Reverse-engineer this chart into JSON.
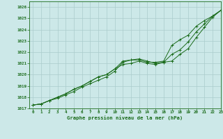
{
  "title": "Graphe pression niveau de la mer (hPa)",
  "background_color": "#cce8e8",
  "grid_color": "#aacccc",
  "line_color": "#1a6b1a",
  "xlim": [
    -0.5,
    23
  ],
  "ylim": [
    1017,
    1026.5
  ],
  "yticks": [
    1017,
    1018,
    1019,
    1020,
    1021,
    1022,
    1023,
    1024,
    1025,
    1026
  ],
  "xticks": [
    0,
    1,
    2,
    3,
    4,
    5,
    6,
    7,
    8,
    9,
    10,
    11,
    12,
    13,
    14,
    15,
    16,
    17,
    18,
    19,
    20,
    21,
    22,
    23
  ],
  "series": [
    [
      1017.3,
      1017.4,
      1017.7,
      1017.9,
      1018.2,
      1018.5,
      1018.9,
      1019.2,
      1019.5,
      1019.8,
      1020.3,
      1021.1,
      1021.3,
      1021.3,
      1021.1,
      1021.1,
      1021.2,
      1022.6,
      1023.1,
      1023.5,
      1024.3,
      1024.8,
      1025.2,
      1025.7
    ],
    [
      1017.3,
      1017.4,
      1017.7,
      1018.0,
      1018.3,
      1018.7,
      1019.0,
      1019.4,
      1019.8,
      1020.0,
      1020.5,
      1021.2,
      1021.3,
      1021.4,
      1021.2,
      1021.0,
      1021.1,
      1021.2,
      1021.8,
      1022.3,
      1023.3,
      1024.2,
      1025.1,
      1025.7
    ],
    [
      1017.3,
      1017.4,
      1017.7,
      1018.0,
      1018.3,
      1018.7,
      1019.0,
      1019.4,
      1019.8,
      1020.0,
      1020.5,
      1020.9,
      1021.0,
      1021.2,
      1021.0,
      1020.9,
      1021.1,
      1021.8,
      1022.2,
      1022.9,
      1023.8,
      1024.5,
      1025.2,
      1025.7
    ]
  ]
}
